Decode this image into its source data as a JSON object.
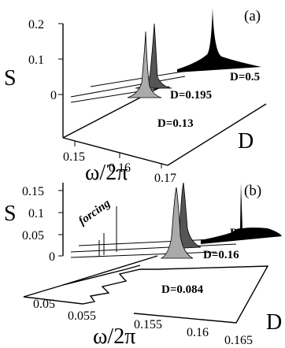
{
  "chart_data": [
    {
      "panel": "(a)",
      "type": "area",
      "ylabel": "S",
      "xlabel": "ω/2π",
      "zlabel": "D",
      "x_ticks": [
        "0.15",
        "0.16",
        "0.17"
      ],
      "y_ticks": [
        "0.2",
        "0.1",
        "0"
      ],
      "series": [
        {
          "name": "D=0.5",
          "fill": "#000000",
          "peak_x": 0.163,
          "peak_height": 0.2
        },
        {
          "name": "D=0.195",
          "fill": "#555555",
          "peak_x": 0.159,
          "peak_height": 0.13
        },
        {
          "name": "D=0.13",
          "fill": "#aaaaaa",
          "peak_x": 0.158,
          "peak_height": 0.15
        }
      ]
    },
    {
      "panel": "(b)",
      "type": "area",
      "ylabel": "S",
      "xlabel": "ω/2π",
      "zlabel": "D",
      "x_ticks": [
        "0.05",
        "0.055",
        "0.155",
        "0.16",
        "0.165"
      ],
      "y_ticks": [
        "0.15",
        "0.1",
        "0.05",
        "0"
      ],
      "annotation": "forcing",
      "series": [
        {
          "name": "D=0.5",
          "fill": "#000000",
          "peak_x": 0.161,
          "peak_height": 0.16
        },
        {
          "name": "D=0.16",
          "fill": "#555555",
          "peak_x": 0.158,
          "peak_height": 0.1
        },
        {
          "name": "D=0.084",
          "fill": "#aaaaaa",
          "peak_x": 0.157,
          "peak_height": 0.08
        }
      ]
    }
  ]
}
